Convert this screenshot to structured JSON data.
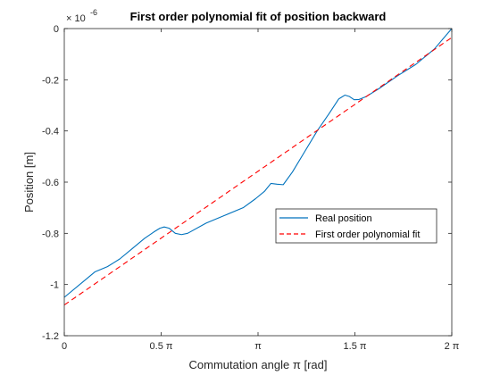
{
  "chart_data": {
    "type": "line",
    "title": "First order polynomial fit of position backward",
    "xlabel": "Commutation angle π [rad]",
    "ylabel": "Position [m]",
    "exponent_label": "× 10",
    "exponent_power": "-6",
    "xlim": [
      0,
      6.283185
    ],
    "ylim": [
      -1.2,
      0
    ],
    "xticks": [
      {
        "value": 0,
        "label": "0"
      },
      {
        "value": 1.570796,
        "label": "0.5 π"
      },
      {
        "value": 3.141593,
        "label": "π"
      },
      {
        "value": 4.712389,
        "label": "1.5 π"
      },
      {
        "value": 6.283185,
        "label": "2 π"
      }
    ],
    "yticks": [
      {
        "value": 0,
        "label": "0"
      },
      {
        "value": -0.2,
        "label": "-0.2"
      },
      {
        "value": -0.4,
        "label": "-0.4"
      },
      {
        "value": -0.6,
        "label": "-0.6"
      },
      {
        "value": -0.8,
        "label": "-0.8"
      },
      {
        "value": -1,
        "label": "-1"
      },
      {
        "value": -1.2,
        "label": "-1.2"
      }
    ],
    "grid": false,
    "legend_position": "center-right",
    "series": [
      {
        "name": "Real position",
        "color": "#0072BD",
        "style": "solid",
        "x": [
          0,
          0.3,
          0.5,
          0.7,
          0.9,
          1.1,
          1.3,
          1.45,
          1.55,
          1.62,
          1.7,
          1.8,
          1.9,
          2.0,
          2.3,
          2.6,
          2.9,
          3.1,
          3.25,
          3.35,
          3.45,
          3.55,
          3.7,
          3.9,
          4.1,
          4.3,
          4.45,
          4.55,
          4.62,
          4.7,
          4.78,
          4.9,
          5.1,
          5.4,
          5.7,
          6.0,
          6.283185
        ],
        "y": [
          -1.05,
          -0.99,
          -0.95,
          -0.93,
          -0.9,
          -0.86,
          -0.82,
          -0.795,
          -0.78,
          -0.775,
          -0.78,
          -0.8,
          -0.805,
          -0.8,
          -0.76,
          -0.73,
          -0.7,
          -0.665,
          -0.635,
          -0.605,
          -0.608,
          -0.61,
          -0.56,
          -0.48,
          -0.4,
          -0.33,
          -0.275,
          -0.26,
          -0.265,
          -0.278,
          -0.277,
          -0.265,
          -0.235,
          -0.185,
          -0.14,
          -0.08,
          0
        ]
      },
      {
        "name": "First order polynomial fit",
        "color": "#FF0000",
        "style": "dashed",
        "x": [
          0,
          6.283185
        ],
        "y": [
          -1.08,
          -0.035
        ]
      }
    ]
  }
}
